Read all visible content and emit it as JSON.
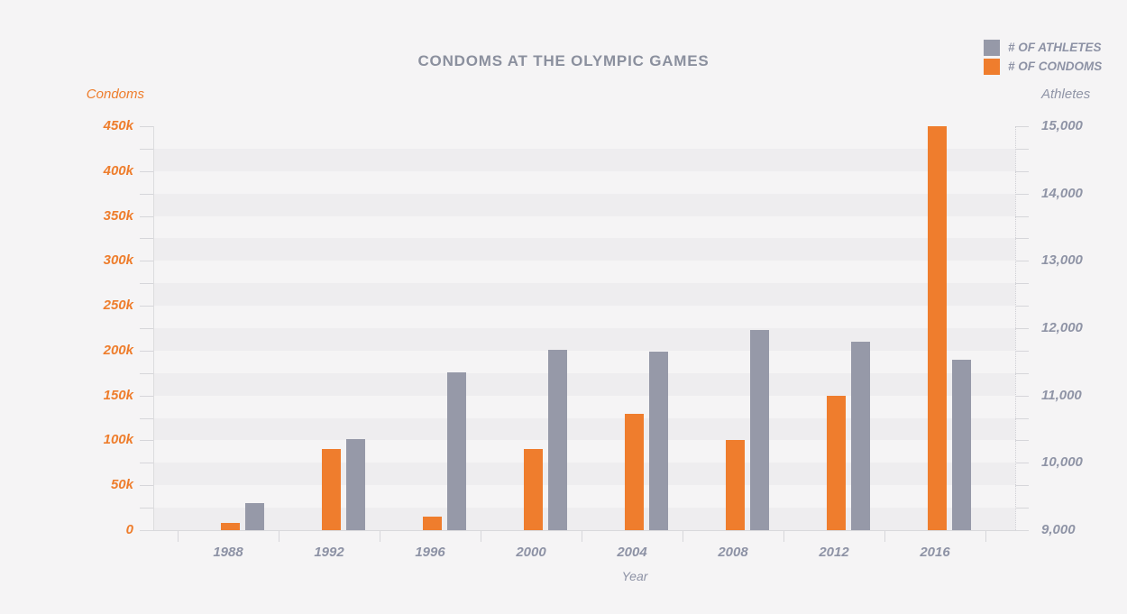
{
  "chart_data": {
    "type": "bar",
    "title": "CONDOMS AT THE OLYMPIC GAMES",
    "categories": [
      "1988",
      "1992",
      "1996",
      "2000",
      "2004",
      "2008",
      "2012",
      "2016"
    ],
    "series": [
      {
        "name": "# OF ATHLETES",
        "axis": "right",
        "color": "#9699a8",
        "values": [
          9400,
          10350,
          11350,
          11675,
          11650,
          11975,
          11800,
          11525
        ]
      },
      {
        "name": "# OF CONDOMS",
        "axis": "left",
        "color": "#ef7d2d",
        "values": [
          8500,
          90000,
          15000,
          90000,
          130000,
          100000,
          150000,
          450000
        ]
      }
    ],
    "xlabel": "Year",
    "left_axis": {
      "label": "Condoms",
      "range": [
        0,
        450000
      ],
      "major_tick_step": 50000,
      "minor_tick_step": 25000,
      "tick_labels": [
        "0",
        "50k",
        "100k",
        "150k",
        "200k",
        "250k",
        "300k",
        "350k",
        "400k",
        "450k"
      ],
      "text_color": "#ee7d2c"
    },
    "right_axis": {
      "label": "Athletes",
      "range": [
        9000,
        15000
      ],
      "major_tick_step": 1000,
      "tick_labels": [
        "9,000",
        "10,000",
        "11,000",
        "12,000",
        "13,000",
        "14,000",
        "15,000"
      ],
      "text_color": "#8f94a6"
    },
    "grid": "horizontal-shaded-bands",
    "legend_position": "top-right"
  },
  "colors": {
    "background": "#f5f4f5",
    "band": "#eeedef",
    "axis_line": "#d9d9dc",
    "tick": "#d6d6da",
    "label_text": "#8d92a5",
    "title_text": "#8b909e"
  }
}
